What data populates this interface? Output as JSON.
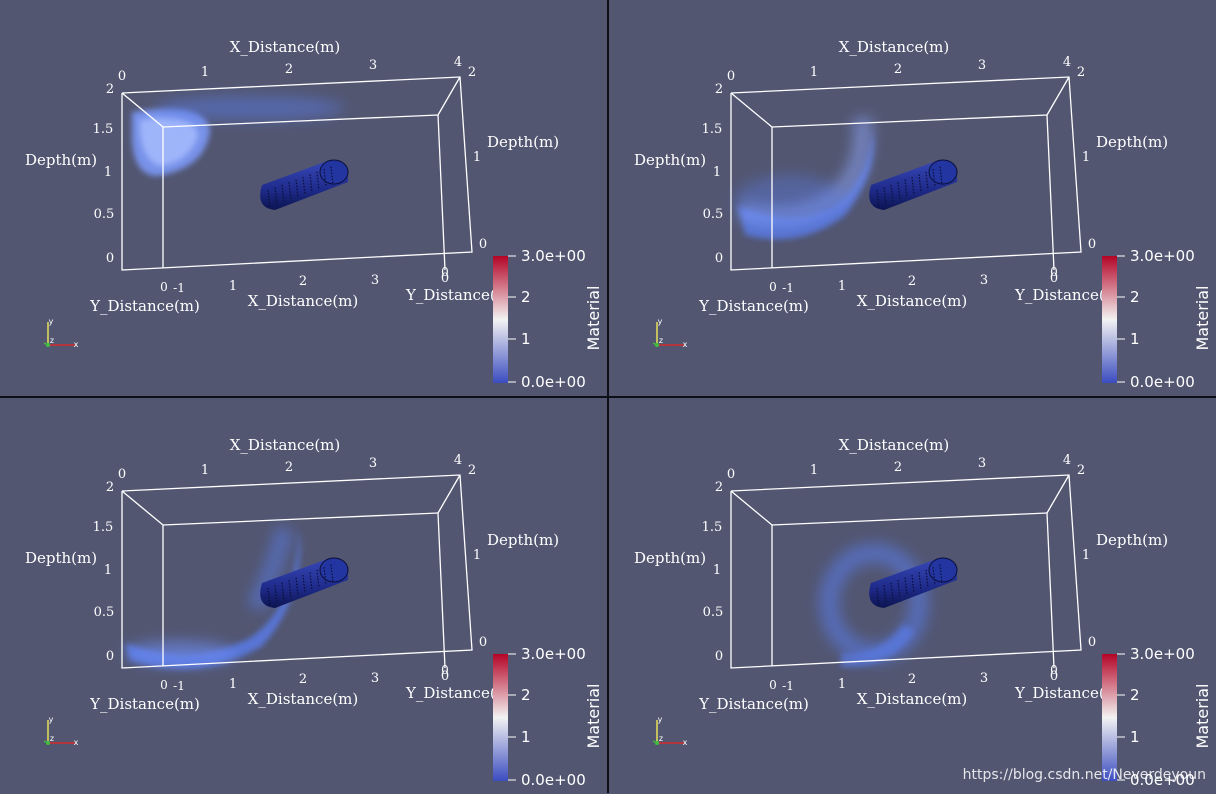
{
  "axes": {
    "x_title": "X_Distance(m)",
    "y_title": "Y_Distance(m)",
    "y_title_right_clipped": "Y_Distance(r",
    "depth_title": "Depth(m)",
    "x_ticks": [
      "0",
      "1",
      "2",
      "3",
      "4"
    ],
    "depth_ticks_left": [
      "0",
      "0.5",
      "1",
      "1.5",
      "2"
    ],
    "depth_ticks_right": [
      "0",
      "1",
      "2"
    ],
    "y_ticks": [
      "0",
      "-1"
    ],
    "bottom_right_tick": "0"
  },
  "colorbar": {
    "title": "Material",
    "ticks": [
      "3.0e+00",
      "2",
      "1",
      "0.0e+00"
    ],
    "colors": {
      "high": "#b40426",
      "mid": "#f2f2f2",
      "low": "#3b4cc0"
    }
  },
  "orientation_axes": {
    "x": "x",
    "y": "y",
    "z": "z"
  },
  "colors": {
    "background": "#525671",
    "divider": "#0e0f14",
    "box_lines": "#ffffff",
    "cylinder": "#1e2b8a",
    "plume": "#5a7ef0"
  },
  "panels": [
    {
      "id": "top-left",
      "plume": "sphere-cap-top"
    },
    {
      "id": "top-right",
      "plume": "crescent-descending"
    },
    {
      "id": "bottom-left",
      "plume": "crescent-bottom"
    },
    {
      "id": "bottom-right",
      "plume": "ring-around-cylinder"
    }
  ],
  "watermark": "https://blog.csdn.net/Neverdeyoun"
}
